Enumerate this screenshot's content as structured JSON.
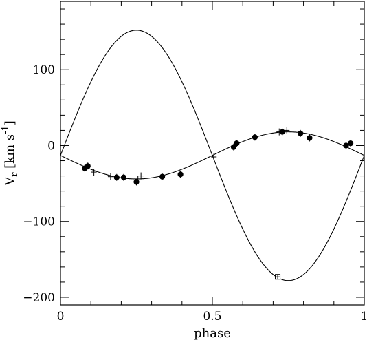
{
  "chart_data": {
    "type": "scatter",
    "xlabel": "phase",
    "ylabel_parts": {
      "base": "V",
      "sub": "r",
      "unit_open": " [km s",
      "unit_exp": "-1",
      "unit_close": "]"
    },
    "xlim": [
      0,
      1
    ],
    "ylim": [
      -210,
      190
    ],
    "x_ticks": [
      {
        "value": 0,
        "label": "0"
      },
      {
        "value": 0.5,
        "label": "0.5"
      },
      {
        "value": 1,
        "label": "1"
      }
    ],
    "y_ticks": [
      {
        "value": -200,
        "label": "−200"
      },
      {
        "value": -100,
        "label": "−100"
      },
      {
        "value": 0,
        "label": "0"
      },
      {
        "value": 100,
        "label": "100"
      }
    ],
    "x_minor_step": 0.1,
    "y_minor_step": 20,
    "grid": false,
    "legend": "none",
    "curves": [
      {
        "gamma": -13,
        "K": 165,
        "phi0": 0
      },
      {
        "gamma": -13,
        "K": 31,
        "phi0": 0.5
      }
    ],
    "series": [
      {
        "marker": "filled-circle",
        "points": [
          {
            "x": 0.08,
            "y": -30
          },
          {
            "x": 0.09,
            "y": -27
          },
          {
            "x": 0.185,
            "y": -42
          },
          {
            "x": 0.208,
            "y": -42
          },
          {
            "x": 0.25,
            "y": -48
          },
          {
            "x": 0.335,
            "y": -41
          },
          {
            "x": 0.395,
            "y": -38
          },
          {
            "x": 0.57,
            "y": -2
          },
          {
            "x": 0.58,
            "y": 3
          },
          {
            "x": 0.64,
            "y": 11
          },
          {
            "x": 0.73,
            "y": 18
          },
          {
            "x": 0.79,
            "y": 16
          },
          {
            "x": 0.82,
            "y": 10
          },
          {
            "x": 0.94,
            "y": 0
          },
          {
            "x": 0.955,
            "y": 3
          }
        ]
      },
      {
        "marker": "cross",
        "points": [
          {
            "x": 0.11,
            "y": -35
          },
          {
            "x": 0.165,
            "y": -41
          },
          {
            "x": 0.255,
            "y": -44
          },
          {
            "x": 0.265,
            "y": -40
          },
          {
            "x": 0.505,
            "y": -15
          },
          {
            "x": 0.72,
            "y": 18
          },
          {
            "x": 0.745,
            "y": 20
          }
        ]
      },
      {
        "marker": "open-square",
        "points": [
          {
            "x": 0.715,
            "y": -173
          }
        ]
      }
    ]
  }
}
